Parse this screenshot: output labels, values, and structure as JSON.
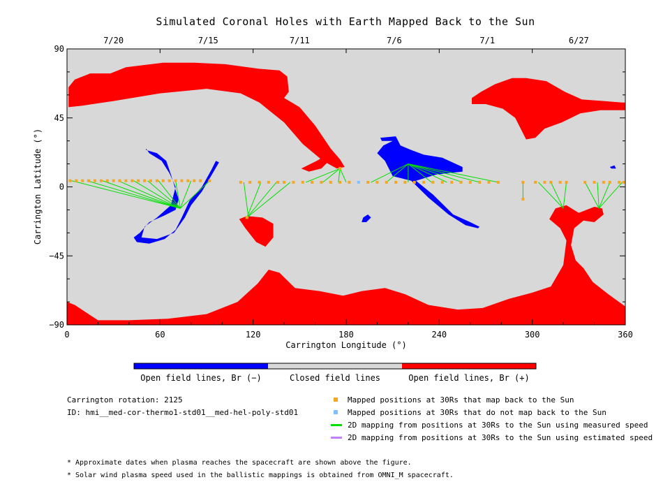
{
  "colors": {
    "closed": "#d8d8d8",
    "open_positive": "#ff0000",
    "open_negative": "#0000ff",
    "mapped_position": "#f5a623",
    "unmapped_position": "#7fbfff",
    "measured_speed_line": "#00e000",
    "estimated_speed_line": "#c080ff"
  },
  "chart_data": {
    "type": "map",
    "title": "Simulated Coronal Holes with Earth Mapped Back to the Sun",
    "xlabel": "Carrington Longitude (°)",
    "ylabel": "Carrington Latitude (°)",
    "xlim": [
      0,
      360
    ],
    "ylim": [
      -90,
      90
    ],
    "x_ticks": [
      0,
      60,
      120,
      180,
      240,
      300,
      360
    ],
    "y_ticks": [
      90,
      45,
      0,
      -45,
      -90
    ],
    "y_tick_labels": [
      "90",
      "45",
      "0",
      "−45",
      "−90"
    ],
    "top_axis_dates": [
      {
        "label": "7/20",
        "lon": 30
      },
      {
        "label": "7/15",
        "lon": 91
      },
      {
        "label": "7/11",
        "lon": 150
      },
      {
        "label": "7/6",
        "lon": 211
      },
      {
        "label": "7/1",
        "lon": 271
      },
      {
        "label": "6/27",
        "lon": 330
      }
    ],
    "regions_positive": [
      [
        [
          1,
          65
        ],
        [
          5,
          70
        ],
        [
          15,
          74
        ],
        [
          28,
          74
        ],
        [
          38,
          78
        ],
        [
          62,
          81
        ],
        [
          82,
          81
        ],
        [
          102,
          80
        ],
        [
          124,
          77
        ],
        [
          137,
          76
        ],
        [
          142,
          72
        ],
        [
          143,
          62
        ],
        [
          140,
          58
        ],
        [
          150,
          52
        ],
        [
          160,
          40
        ],
        [
          170,
          25
        ],
        [
          176,
          18
        ],
        [
          179,
          13
        ],
        [
          174,
          12
        ],
        [
          165,
          17
        ],
        [
          152,
          28
        ],
        [
          140,
          42
        ],
        [
          124,
          55
        ],
        [
          112,
          61
        ],
        [
          90,
          64
        ],
        [
          60,
          61
        ],
        [
          30,
          56
        ],
        [
          10,
          53
        ],
        [
          1,
          52
        ]
      ],
      [
        [
          261,
          58
        ],
        [
          267,
          62
        ],
        [
          276,
          67
        ],
        [
          287,
          71
        ],
        [
          296,
          71
        ],
        [
          309,
          69
        ],
        [
          321,
          62
        ],
        [
          332,
          57
        ],
        [
          346,
          56
        ],
        [
          358,
          55
        ],
        [
          360,
          55
        ],
        [
          360,
          50
        ],
        [
          344,
          50
        ],
        [
          331,
          48
        ],
        [
          319,
          42
        ],
        [
          308,
          38
        ],
        [
          302,
          32
        ],
        [
          296,
          31
        ],
        [
          293,
          37
        ],
        [
          289,
          45
        ],
        [
          281,
          51
        ],
        [
          270,
          54
        ],
        [
          261,
          54
        ]
      ],
      [
        [
          0,
          -90
        ],
        [
          360,
          -90
        ],
        [
          360,
          -78
        ],
        [
          349,
          -70
        ],
        [
          339,
          -62
        ],
        [
          333,
          -53
        ],
        [
          328,
          -48
        ],
        [
          325,
          -38
        ],
        [
          327,
          -27
        ],
        [
          333,
          -22
        ],
        [
          340,
          -23
        ],
        [
          346,
          -18
        ],
        [
          345,
          -14
        ],
        [
          340,
          -13
        ],
        [
          330,
          -17
        ],
        [
          322,
          -12
        ],
        [
          315,
          -14
        ],
        [
          311,
          -21
        ],
        [
          318,
          -27
        ],
        [
          322,
          -35
        ],
        [
          320,
          -51
        ],
        [
          312,
          -65
        ],
        [
          300,
          -69
        ],
        [
          285,
          -73
        ],
        [
          268,
          -79
        ],
        [
          252,
          -80
        ],
        [
          233,
          -77
        ],
        [
          218,
          -70
        ],
        [
          205,
          -66
        ],
        [
          190,
          -68
        ],
        [
          178,
          -71
        ],
        [
          163,
          -68
        ],
        [
          147,
          -66
        ],
        [
          137,
          -56
        ],
        [
          130,
          -54
        ],
        [
          123,
          -63
        ],
        [
          110,
          -75
        ],
        [
          90,
          -83
        ],
        [
          65,
          -86
        ],
        [
          40,
          -87
        ],
        [
          20,
          -87
        ],
        [
          5,
          -77
        ],
        [
          0,
          -75
        ]
      ],
      [
        [
          111,
          -21
        ],
        [
          116,
          -19
        ],
        [
          126,
          -20
        ],
        [
          133,
          -24
        ],
        [
          133,
          -33
        ],
        [
          128,
          -39
        ],
        [
          122,
          -36
        ],
        [
          115,
          -27
        ]
      ],
      [
        [
          151,
          12
        ],
        [
          161,
          17
        ],
        [
          166,
          20
        ],
        [
          168,
          16
        ],
        [
          164,
          12
        ],
        [
          156,
          10
        ]
      ]
    ],
    "regions_negative": [
      [
        [
          51,
          24
        ],
        [
          58,
          22
        ],
        [
          64,
          17
        ],
        [
          67,
          8
        ],
        [
          70,
          -2
        ],
        [
          72,
          -8
        ],
        [
          70,
          -15
        ],
        [
          62,
          -19
        ],
        [
          53,
          -23
        ],
        [
          47,
          -30
        ],
        [
          43,
          -33
        ],
        [
          45,
          -36
        ],
        [
          53,
          -37
        ],
        [
          63,
          -34
        ],
        [
          70,
          -28
        ],
        [
          74,
          -20
        ],
        [
          79,
          -9
        ],
        [
          87,
          0
        ],
        [
          93,
          11
        ],
        [
          96,
          17
        ],
        [
          98,
          16
        ],
        [
          94,
          9
        ],
        [
          87,
          -3
        ],
        [
          80,
          -12
        ],
        [
          76,
          -20
        ],
        [
          69,
          -30
        ],
        [
          58,
          -34
        ],
        [
          48,
          -33
        ],
        [
          50,
          -26
        ],
        [
          58,
          -20
        ],
        [
          67,
          -12
        ],
        [
          70,
          0
        ],
        [
          66,
          9
        ],
        [
          61,
          17
        ],
        [
          53,
          22
        ],
        [
          51,
          25
        ]
      ],
      [
        [
          202,
          32
        ],
        [
          212,
          33
        ],
        [
          215,
          27
        ],
        [
          222,
          24
        ],
        [
          230,
          21
        ],
        [
          242,
          19
        ],
        [
          255,
          13
        ],
        [
          255,
          10
        ],
        [
          238,
          8
        ],
        [
          225,
          4
        ],
        [
          236,
          -5
        ],
        [
          249,
          -18
        ],
        [
          260,
          -23
        ],
        [
          266,
          -26
        ],
        [
          265,
          -27
        ],
        [
          257,
          -25
        ],
        [
          246,
          -18
        ],
        [
          233,
          -7
        ],
        [
          222,
          4
        ],
        [
          210,
          7
        ],
        [
          205,
          17
        ],
        [
          200,
          22
        ],
        [
          204,
          27
        ],
        [
          210,
          30
        ],
        [
          203,
          30
        ]
      ],
      [
        [
          191,
          -20
        ],
        [
          194,
          -18
        ],
        [
          196,
          -20
        ],
        [
          193,
          -23
        ],
        [
          190,
          -23
        ]
      ],
      [
        [
          350,
          13
        ],
        [
          353,
          14
        ],
        [
          354,
          12
        ],
        [
          351,
          12
        ]
      ]
    ],
    "mapping_lines_measured": [
      [
        [
          3,
          4
        ],
        [
          73,
          -14
        ]
      ],
      [
        [
          13,
          4
        ],
        [
          73,
          -14
        ]
      ],
      [
        [
          23,
          4
        ],
        [
          73,
          -14
        ]
      ],
      [
        [
          33,
          4
        ],
        [
          73,
          -14
        ]
      ],
      [
        [
          43,
          4
        ],
        [
          73,
          -14
        ]
      ],
      [
        [
          52,
          4
        ],
        [
          73,
          -14
        ]
      ],
      [
        [
          59,
          4
        ],
        [
          73,
          -14
        ]
      ],
      [
        [
          70,
          4
        ],
        [
          73,
          -14
        ]
      ],
      [
        [
          80,
          4
        ],
        [
          73,
          -14
        ]
      ],
      [
        [
          92,
          4
        ],
        [
          73,
          -14
        ]
      ],
      [
        [
          114,
          3
        ],
        [
          117,
          -20
        ]
      ],
      [
        [
          125,
          3
        ],
        [
          116,
          -20
        ]
      ],
      [
        [
          135,
          3
        ],
        [
          116,
          -20
        ]
      ],
      [
        [
          144,
          3
        ],
        [
          116,
          -20
        ]
      ],
      [
        [
          154,
          3
        ],
        [
          176,
          12
        ]
      ],
      [
        [
          165,
          3
        ],
        [
          176,
          12
        ]
      ],
      [
        [
          175,
          3
        ],
        [
          176,
          12
        ]
      ],
      [
        [
          180,
          3
        ],
        [
          176,
          12
        ]
      ],
      [
        [
          196,
          3
        ],
        [
          220,
          15
        ]
      ],
      [
        [
          206,
          3
        ],
        [
          220,
          15
        ]
      ],
      [
        [
          220,
          3
        ],
        [
          220,
          15
        ]
      ],
      [
        [
          235,
          3
        ],
        [
          220,
          15
        ]
      ],
      [
        [
          245,
          3
        ],
        [
          220,
          15
        ]
      ],
      [
        [
          255,
          3
        ],
        [
          220,
          15
        ]
      ],
      [
        [
          266,
          3
        ],
        [
          220,
          15
        ]
      ],
      [
        [
          278,
          3
        ],
        [
          220,
          15
        ]
      ],
      [
        [
          294,
          3
        ],
        [
          294,
          -8
        ]
      ],
      [
        [
          304,
          3
        ],
        [
          320,
          -14
        ]
      ],
      [
        [
          312,
          3
        ],
        [
          320,
          -14
        ]
      ],
      [
        [
          322,
          3
        ],
        [
          320,
          -14
        ]
      ],
      [
        [
          334,
          3
        ],
        [
          343,
          -14
        ]
      ],
      [
        [
          342,
          3
        ],
        [
          343,
          -14
        ]
      ],
      [
        [
          350,
          3
        ],
        [
          343,
          -14
        ]
      ],
      [
        [
          358,
          3
        ],
        [
          343,
          -14
        ]
      ]
    ],
    "mapped_positions": [
      [
        2,
        4
      ],
      [
        6,
        4
      ],
      [
        10,
        4
      ],
      [
        14,
        4
      ],
      [
        18,
        4
      ],
      [
        22,
        4
      ],
      [
        26,
        4
      ],
      [
        30,
        4
      ],
      [
        34,
        4
      ],
      [
        38,
        4
      ],
      [
        42,
        4
      ],
      [
        46,
        4
      ],
      [
        50,
        4
      ],
      [
        54,
        4
      ],
      [
        58,
        4
      ],
      [
        62,
        4
      ],
      [
        66,
        4
      ],
      [
        70,
        4
      ],
      [
        74,
        4
      ],
      [
        78,
        4
      ],
      [
        82,
        4
      ],
      [
        86,
        4
      ],
      [
        92,
        4
      ],
      [
        112,
        3
      ],
      [
        118,
        3
      ],
      [
        124,
        3
      ],
      [
        130,
        3
      ],
      [
        136,
        3
      ],
      [
        140,
        3
      ],
      [
        146,
        3
      ],
      [
        152,
        3
      ],
      [
        158,
        3
      ],
      [
        164,
        3
      ],
      [
        170,
        3
      ],
      [
        176,
        3
      ],
      [
        182,
        3
      ],
      [
        194,
        3
      ],
      [
        200,
        3
      ],
      [
        206,
        3
      ],
      [
        212,
        3
      ],
      [
        218,
        3
      ],
      [
        224,
        3
      ],
      [
        230,
        3
      ],
      [
        236,
        3
      ],
      [
        242,
        3
      ],
      [
        248,
        3
      ],
      [
        254,
        3
      ],
      [
        260,
        3
      ],
      [
        266,
        3
      ],
      [
        272,
        3
      ],
      [
        278,
        3
      ],
      [
        294,
        3
      ],
      [
        302,
        3
      ],
      [
        308,
        3
      ],
      [
        312,
        3
      ],
      [
        318,
        3
      ],
      [
        322,
        3
      ],
      [
        334,
        3
      ],
      [
        340,
        3
      ],
      [
        346,
        3
      ],
      [
        350,
        3
      ],
      [
        356,
        3
      ],
      [
        359,
        3
      ],
      [
        176,
        12
      ],
      [
        116,
        -20
      ],
      [
        294,
        -8
      ]
    ],
    "unmapped_positions": [
      [
        188,
        3
      ]
    ],
    "colorbar_labels": [
      "Open field lines, Br (−)",
      "Closed field lines",
      "Open field lines, Br (+)"
    ]
  },
  "info": {
    "rotation": "Carrington rotation: 2125",
    "id": "ID: hmi__med-cor-thermo1-std01__med-hel-poly-std01"
  },
  "legend": {
    "mapped": "Mapped positions at 30Rs that map back to the Sun",
    "unmapped": "Mapped positions at 30Rs that do not map back to the Sun",
    "measured": "2D mapping from positions at 30Rs to the Sun using measured speed",
    "estimated": "2D mapping from positions at 30Rs to the Sun using estimated speed"
  },
  "notes": {
    "note1": "* Approximate dates when plasma reaches the spacecraft are shown above the figure.",
    "note2": "* Solar wind plasma speed used in the ballistic mappings is obtained from OMNI_M spacecraft."
  }
}
